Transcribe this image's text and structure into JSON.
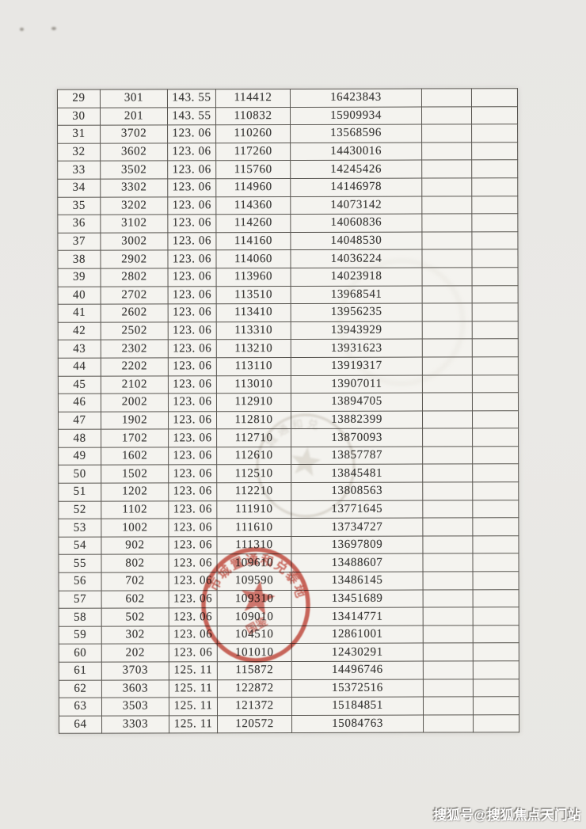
{
  "table": {
    "blank_column_count": 2,
    "rows": [
      [
        "29",
        "301",
        "143. 55",
        "114412",
        "16423843"
      ],
      [
        "30",
        "201",
        "143. 55",
        "110832",
        "15909934"
      ],
      [
        "31",
        "3702",
        "123. 06",
        "110260",
        "13568596"
      ],
      [
        "32",
        "3602",
        "123. 06",
        "117260",
        "14430016"
      ],
      [
        "33",
        "3502",
        "123. 06",
        "115760",
        "14245426"
      ],
      [
        "34",
        "3302",
        "123. 06",
        "114960",
        "14146978"
      ],
      [
        "35",
        "3202",
        "123. 06",
        "114360",
        "14073142"
      ],
      [
        "36",
        "3102",
        "123. 06",
        "114260",
        "14060836"
      ],
      [
        "37",
        "3002",
        "123. 06",
        "114160",
        "14048530"
      ],
      [
        "38",
        "2902",
        "123. 06",
        "114060",
        "14036224"
      ],
      [
        "39",
        "2802",
        "123. 06",
        "113960",
        "14023918"
      ],
      [
        "40",
        "2702",
        "123. 06",
        "113510",
        "13968541"
      ],
      [
        "41",
        "2602",
        "123. 06",
        "113410",
        "13956235"
      ],
      [
        "42",
        "2502",
        "123. 06",
        "113310",
        "13943929"
      ],
      [
        "43",
        "2302",
        "123. 06",
        "113210",
        "13931623"
      ],
      [
        "44",
        "2202",
        "123. 06",
        "113110",
        "13919317"
      ],
      [
        "45",
        "2102",
        "123. 06",
        "113010",
        "13907011"
      ],
      [
        "46",
        "2002",
        "123. 06",
        "112910",
        "13894705"
      ],
      [
        "47",
        "1902",
        "123. 06",
        "112810",
        "13882399"
      ],
      [
        "48",
        "1702",
        "123. 06",
        "112710",
        "13870093"
      ],
      [
        "49",
        "1602",
        "123. 06",
        "112610",
        "13857787"
      ],
      [
        "50",
        "1502",
        "123. 06",
        "112510",
        "13845481"
      ],
      [
        "51",
        "1202",
        "123. 06",
        "112210",
        "13808563"
      ],
      [
        "52",
        "1102",
        "123. 06",
        "111910",
        "13771645"
      ],
      [
        "53",
        "1002",
        "123. 06",
        "111610",
        "13734727"
      ],
      [
        "54",
        "902",
        "123. 06",
        "111310",
        "13697809"
      ],
      [
        "55",
        "802",
        "123. 06",
        "109610",
        "13488607"
      ],
      [
        "56",
        "702",
        "123. 06",
        "109590",
        "13486145"
      ],
      [
        "57",
        "602",
        "123. 06",
        "109310",
        "13451689"
      ],
      [
        "58",
        "502",
        "123. 06",
        "109010",
        "13414771"
      ],
      [
        "59",
        "302",
        "123. 06",
        "104510",
        "12861001"
      ],
      [
        "60",
        "202",
        "123. 06",
        "101010",
        "12430291"
      ],
      [
        "61",
        "3703",
        "125. 11",
        "115872",
        "14496746"
      ],
      [
        "62",
        "3603",
        "125. 11",
        "122872",
        "15372516"
      ],
      [
        "63",
        "3503",
        "125. 11",
        "121372",
        "15184851"
      ],
      [
        "64",
        "3303",
        "125. 11",
        "120572",
        "15084763"
      ]
    ]
  },
  "seal": {
    "color": "#c5463a",
    "arc_text_approx": "市城置通和兑泰地",
    "inner_text_approx": "国鉴"
  },
  "ghost_seal": {
    "color": "#968a76",
    "arc_text_approx": "城通和兑"
  },
  "watermark": {
    "text": "搜狐号@搜狐焦点天门站",
    "color": "#ffffff"
  }
}
